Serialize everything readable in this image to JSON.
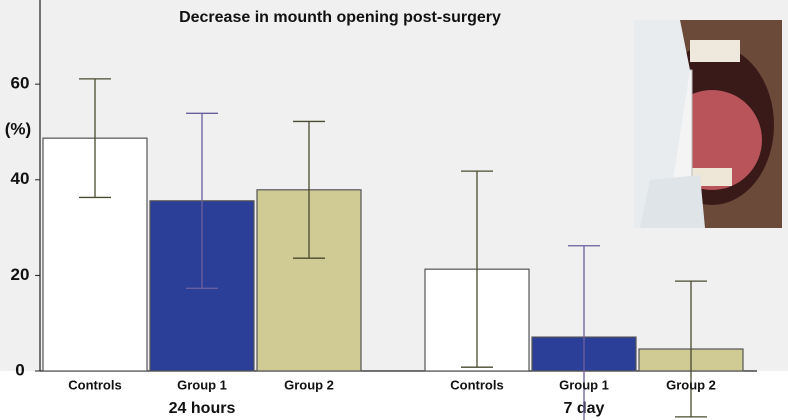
{
  "chart_data": {
    "type": "bar",
    "title": "Decrease in mounth opening post-surgery",
    "y_label": "(%)",
    "categories": [
      "24 hours",
      "7 day"
    ],
    "series": [
      {
        "name": "Controls",
        "color": "#ffffff",
        "error_color": "#4a4a30",
        "values": [
          48.7,
          21.3
        ],
        "errors": [
          12.4,
          20.5
        ]
      },
      {
        "name": "Group 1",
        "color": "#2c3f98",
        "error_color": "#6a5e9e",
        "values": [
          35.6,
          7.1
        ],
        "errors": [
          18.3,
          19.1
        ]
      },
      {
        "name": "Group 2",
        "color": "#d0cb95",
        "error_color": "#4a4a30",
        "values": [
          37.9,
          4.6
        ],
        "errors": [
          14.3,
          14.2
        ]
      }
    ],
    "ylim": [
      0,
      77.6
    ],
    "yticks": [
      0,
      20,
      40,
      60
    ],
    "grid": false
  }
}
